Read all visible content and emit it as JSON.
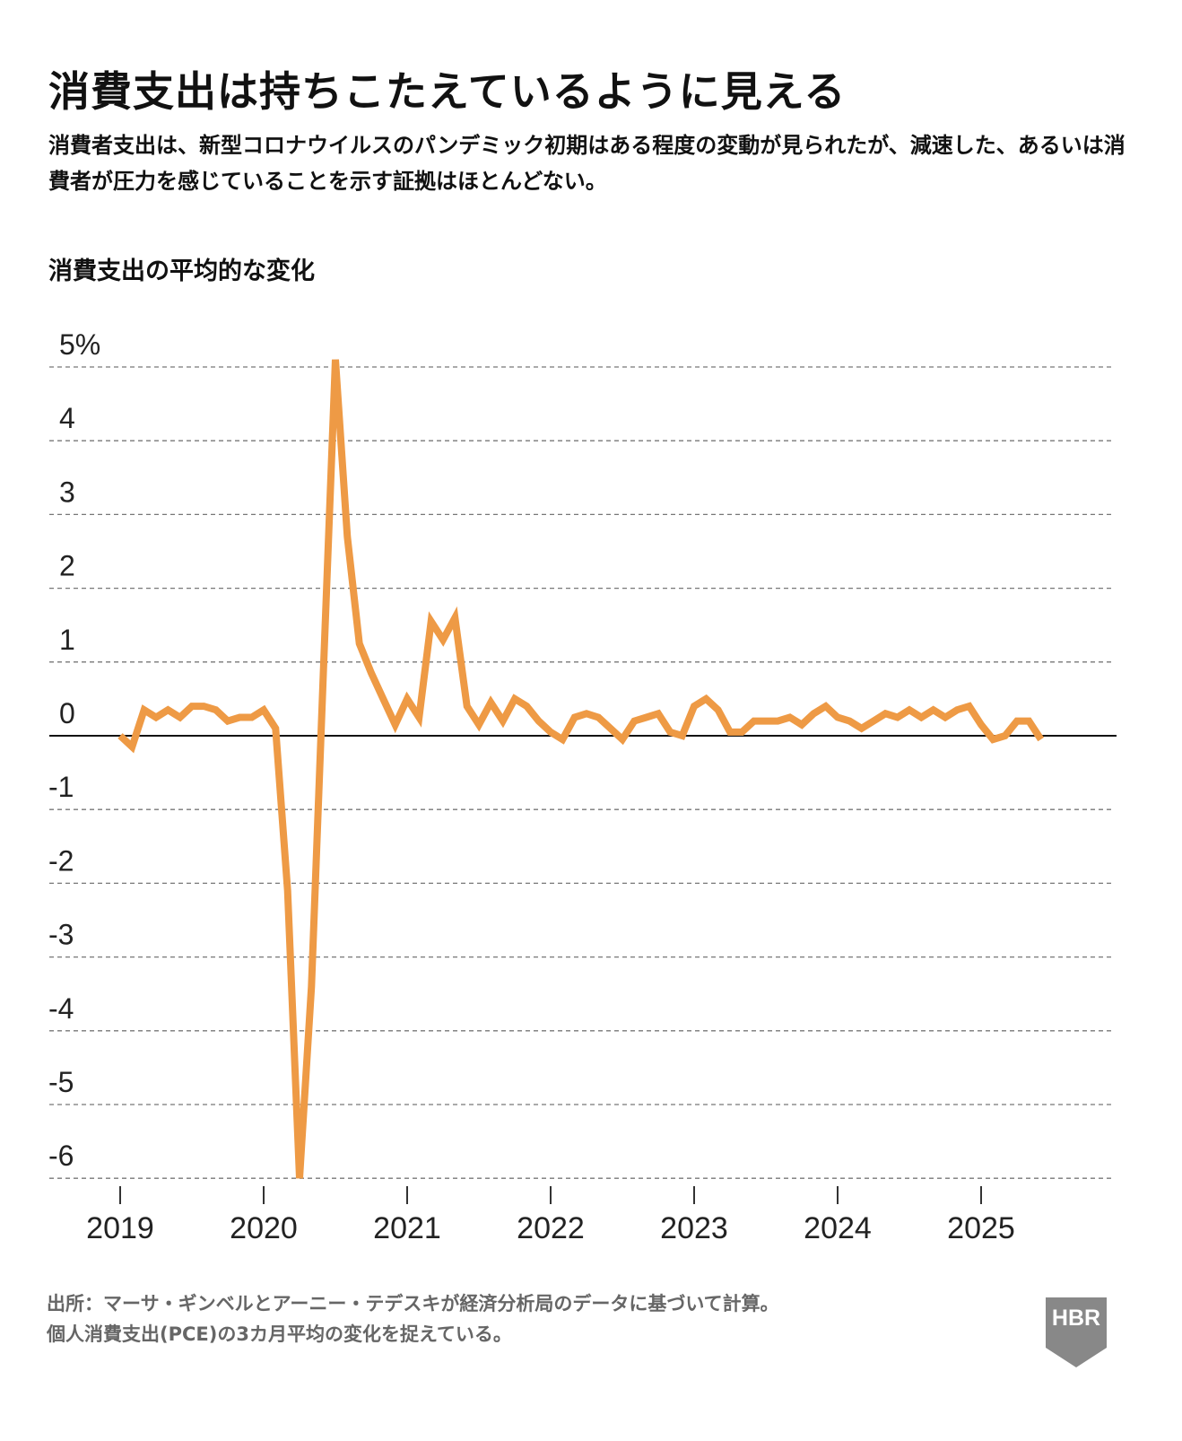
{
  "title": "消費支出は持ちこたえているように見える",
  "subtitle": "消費者支出は、新型コロナウイルスのパンデミック初期はある程度の変動が見られたが、減速した、あるいは消費者が圧力を感じていることを示す証拠はほとんどない。",
  "footer": {
    "line1": "出所：マーサ・ギンベルとアーニー・テデスキが経済分析局のデータに基づいて計算。",
    "line2": "個人消費支出(PCE)の3カ月平均の変化を捉えている。"
  },
  "logo_text": "HBR",
  "colors": {
    "line": "#EE9A45",
    "grid": "#777777",
    "zero": "#111111",
    "logo": "#888888"
  },
  "chart_data": {
    "type": "line",
    "title": "消費支出の平均的な変化",
    "xlabel": "",
    "ylabel": "消費支出の平均的な変化",
    "ylim": [
      -6,
      5
    ],
    "y_ticks": [
      5,
      4,
      3,
      2,
      1,
      0,
      -1,
      -2,
      -3,
      -4,
      -5,
      -6
    ],
    "y_tick_labels": [
      "5%",
      "4",
      "3",
      "2",
      "1",
      "0",
      "-1",
      "-2",
      "-3",
      "-4",
      "-5",
      "-6"
    ],
    "x_ticks": [
      "2019",
      "2020",
      "2021",
      "2022",
      "2023",
      "2024",
      "2025"
    ],
    "grid": true,
    "x_start": "2019-01",
    "x_frequency": "monthly",
    "series": [
      {
        "name": "消費支出の平均的な変化",
        "values": [
          0.0,
          -0.15,
          0.35,
          0.25,
          0.35,
          0.25,
          0.4,
          0.4,
          0.35,
          0.2,
          0.25,
          0.25,
          0.35,
          0.1,
          -2.1,
          -6.0,
          -3.4,
          0.9,
          5.1,
          2.7,
          1.25,
          0.85,
          0.5,
          0.15,
          0.5,
          0.25,
          1.55,
          1.3,
          1.6,
          0.4,
          0.15,
          0.45,
          0.2,
          0.5,
          0.4,
          0.2,
          0.05,
          -0.05,
          0.25,
          0.3,
          0.25,
          0.1,
          -0.05,
          0.2,
          0.25,
          0.3,
          0.05,
          0.0,
          0.4,
          0.5,
          0.35,
          0.05,
          0.05,
          0.2,
          0.2,
          0.2,
          0.25,
          0.15,
          0.3,
          0.4,
          0.25,
          0.2,
          0.1,
          0.2,
          0.3,
          0.25,
          0.35,
          0.25,
          0.35,
          0.25,
          0.35,
          0.4,
          0.15,
          -0.05,
          0.0,
          0.2,
          0.2,
          -0.05
        ]
      }
    ]
  }
}
